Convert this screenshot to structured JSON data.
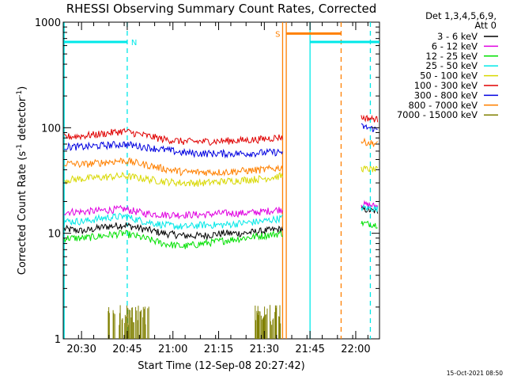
{
  "chart_data": {
    "type": "line",
    "title": "RHESSI Observing Summary Count Rates, Corrected",
    "xlabel": "Start Time (12-Sep-08 20:27:42)",
    "ylabel_main": "Corrected Count Rate (s",
    "ylabel_sup1": "-1",
    "ylabel_mid": " detector",
    "ylabel_sup2": "-1",
    "ylabel_end": ")",
    "yscale": "log",
    "ylim": [
      1,
      1000
    ],
    "xlim_minutes": [
      20.4,
      22.13
    ],
    "y_ticks": [
      {
        "v": 1,
        "label": "1"
      },
      {
        "v": 10,
        "label": "10"
      },
      {
        "v": 100,
        "label": "100"
      },
      {
        "v": 1000,
        "label": "1000"
      }
    ],
    "x_ticks": [
      {
        "t": 20.5,
        "label": "20:30"
      },
      {
        "t": 20.75,
        "label": "20:45"
      },
      {
        "t": 21.0,
        "label": "21:00"
      },
      {
        "t": 21.25,
        "label": "21:15"
      },
      {
        "t": 21.5,
        "label": "21:30"
      },
      {
        "t": 21.75,
        "label": "21:45"
      },
      {
        "t": 22.0,
        "label": "22:00"
      }
    ],
    "legend_header": [
      "Det 1,3,4,5,6,9,",
      "Att 0"
    ],
    "legend_position": "top-right",
    "series": [
      {
        "name": "3 - 6 keV",
        "color": "#000000",
        "values": [
          11,
          10.5,
          11.5,
          12,
          11,
          10,
          9.5,
          9.5,
          10,
          10,
          10.5,
          11
        ],
        "after_gap": [
          17,
          16
        ]
      },
      {
        "name": "6 - 12 keV",
        "color": "#e000e0",
        "values": [
          16,
          16,
          16.5,
          17,
          15.5,
          15,
          15,
          15,
          15.5,
          15.5,
          16,
          17
        ],
        "after_gap": [
          19,
          18
        ]
      },
      {
        "name": "12 - 25 keV",
        "color": "#00e000",
        "values": [
          9,
          9,
          9.5,
          10,
          9,
          8,
          7.5,
          8,
          8.5,
          9,
          9.5,
          10
        ],
        "after_gap": [
          12.5,
          12
        ]
      },
      {
        "name": "25 - 50 keV",
        "color": "#00e8e8",
        "values": [
          13,
          13,
          14,
          14.5,
          13,
          12,
          11.5,
          12,
          12,
          12.5,
          13,
          14
        ],
        "after_gap": [
          17.5,
          17
        ]
      },
      {
        "name": "50 - 100 keV",
        "color": "#d8d800",
        "values": [
          32,
          33,
          34,
          35,
          33,
          31,
          30,
          30,
          31,
          32,
          33,
          35
        ],
        "after_gap": [
          41,
          40
        ]
      },
      {
        "name": "100 - 300 keV",
        "color": "#e00000",
        "values": [
          82,
          84,
          88,
          93,
          85,
          78,
          74,
          74,
          75,
          76,
          78,
          82
        ],
        "after_gap": [
          125,
          120
        ]
      },
      {
        "name": "300 - 800 keV",
        "color": "#0000e0",
        "values": [
          66,
          66,
          68,
          70,
          66,
          62,
          58,
          57,
          57,
          57,
          58,
          59
        ],
        "after_gap": [
          103,
          96
        ]
      },
      {
        "name": "800 - 7000 keV",
        "color": "#ff8000",
        "values": [
          46,
          45,
          47,
          49,
          45,
          41,
          38,
          38,
          38,
          39,
          40,
          42
        ],
        "after_gap": [
          74,
          70
        ]
      },
      {
        "name": "7000 - 15000 keV",
        "color": "#808000",
        "values": [],
        "after_gap": []
      }
    ],
    "segments": {
      "data_t_range": [
        20.405,
        21.6
      ],
      "gap_data_t_range": [
        22.03,
        22.12
      ],
      "flag_bars": [
        {
          "label": "N",
          "color": "#00e8e8",
          "t0": 20.405,
          "t1": 20.75,
          "v": 650
        },
        {
          "label": "",
          "color": "#00e8e8",
          "t0": 21.75,
          "t1": 22.13,
          "v": 650
        },
        {
          "label": "S",
          "color": "#ff8000",
          "t0": 21.62,
          "t1": 21.92,
          "v": 780
        }
      ],
      "vlines": [
        {
          "t": 20.405,
          "color": "#00e8e8",
          "style": "solid"
        },
        {
          "t": 20.75,
          "color": "#00e8e8",
          "style": "dashed"
        },
        {
          "t": 21.6,
          "color": "#ff8000",
          "style": "solid"
        },
        {
          "t": 21.62,
          "color": "#ff8000",
          "style": "solid"
        },
        {
          "t": 21.75,
          "color": "#00e8e8",
          "style": "solid"
        },
        {
          "t": 21.92,
          "color": "#ff8000",
          "style": "dashed"
        },
        {
          "t": 22.08,
          "color": "#00e8e8",
          "style": "dashed"
        }
      ],
      "high_energy_bursts": [
        [
          20.64,
          20.87
        ],
        [
          21.45,
          21.6
        ]
      ]
    }
  },
  "footer": {
    "timestamp": "15-Oct-2021 08:50"
  }
}
